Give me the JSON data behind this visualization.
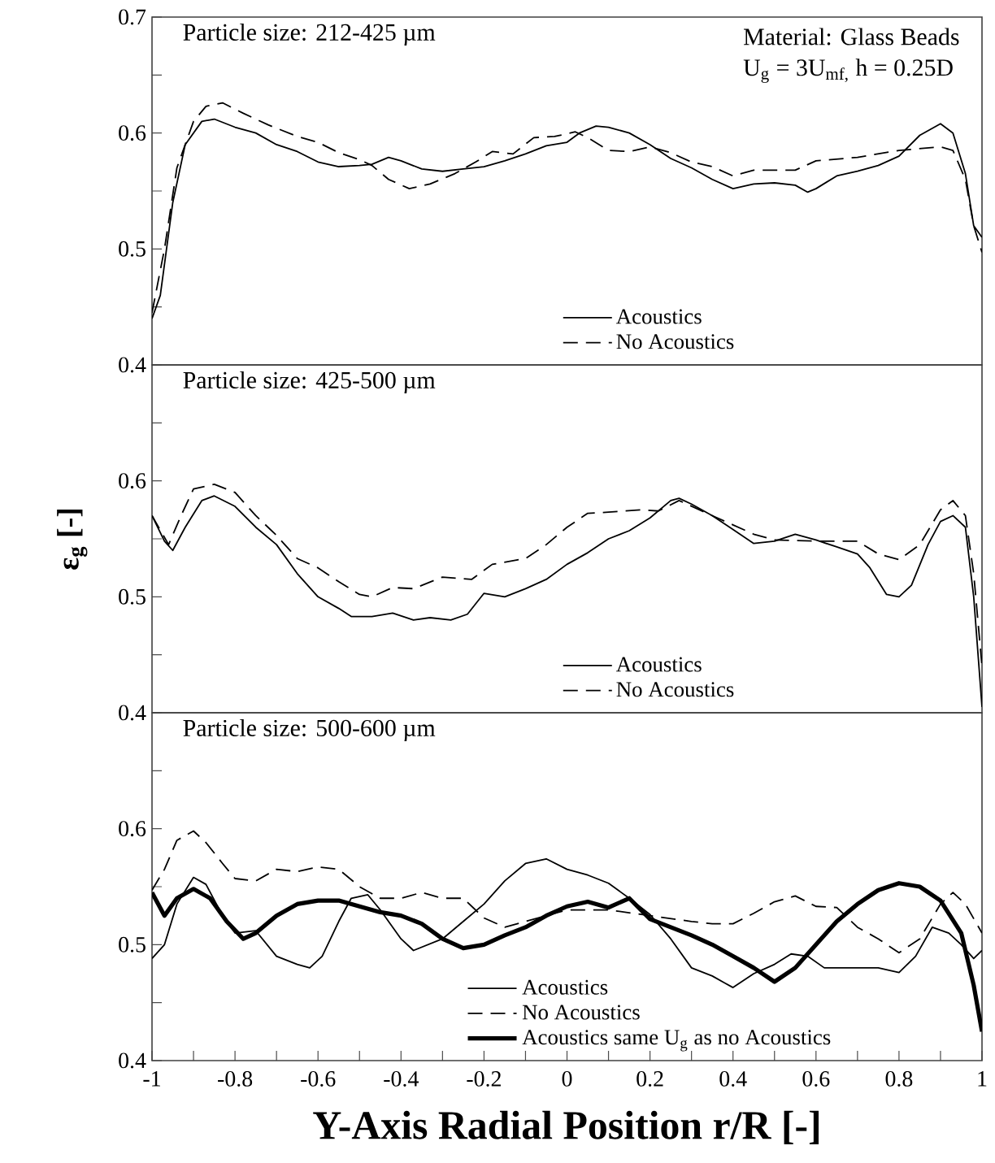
{
  "chart_data": [
    {
      "type": "line",
      "title": "Particle size: 212-425 µm",
      "xlim": [
        -1,
        1
      ],
      "ylim": [
        0.4,
        0.7
      ],
      "yticks": [
        0.4,
        {
          "value": 0.45,
          "label": null
        },
        0.5,
        {
          "value": 0.55,
          "label": null
        },
        0.6,
        {
          "value": 0.65,
          "label": null
        },
        0.7
      ],
      "tick_labels": "y",
      "legend": "bottom",
      "annotations": [
        "Material: Glass Beads",
        "U$_{g}$ = 3U$_{mf,}$ h = 0.25D"
      ],
      "series": [
        {
          "name": "Acoustics",
          "color": "#000000",
          "line_style": "solid",
          "x": [
            -1,
            -0.98,
            -0.95,
            -0.92,
            -0.88,
            -0.85,
            -0.8,
            -0.75,
            -0.7,
            -0.65,
            -0.6,
            -0.55,
            -0.5,
            -0.47,
            -0.43,
            -0.4,
            -0.35,
            -0.3,
            -0.25,
            -0.2,
            -0.15,
            -0.1,
            -0.05,
            0,
            0.03,
            0.07,
            0.1,
            0.15,
            0.2,
            0.25,
            0.3,
            0.35,
            0.4,
            0.45,
            0.5,
            0.55,
            0.58,
            0.6,
            0.65,
            0.7,
            0.75,
            0.8,
            0.85,
            0.9,
            0.93,
            0.96,
            0.98,
            1
          ],
          "values": [
            0.44,
            0.46,
            0.54,
            0.59,
            0.61,
            0.612,
            0.605,
            0.6,
            0.59,
            0.584,
            0.575,
            0.571,
            0.572,
            0.573,
            0.579,
            0.576,
            0.569,
            0.567,
            0.569,
            0.571,
            0.576,
            0.582,
            0.589,
            0.592,
            0.6,
            0.606,
            0.605,
            0.6,
            0.59,
            0.578,
            0.57,
            0.56,
            0.552,
            0.556,
            0.557,
            0.555,
            0.549,
            0.552,
            0.563,
            0.567,
            0.572,
            0.58,
            0.598,
            0.608,
            0.6,
            0.565,
            0.52,
            0.51
          ]
        },
        {
          "name": "No Acoustics",
          "color": "#000000",
          "line_style": "dashed",
          "x": [
            -1,
            -0.97,
            -0.94,
            -0.9,
            -0.87,
            -0.83,
            -0.78,
            -0.72,
            -0.65,
            -0.6,
            -0.55,
            -0.5,
            -0.47,
            -0.43,
            -0.38,
            -0.33,
            -0.27,
            -0.22,
            -0.18,
            -0.13,
            -0.08,
            -0.03,
            0.02,
            0.05,
            0.1,
            0.15,
            0.2,
            0.25,
            0.3,
            0.35,
            0.4,
            0.45,
            0.55,
            0.6,
            0.7,
            0.8,
            0.9,
            0.93,
            0.96,
            0.98,
            1
          ],
          "values": [
            0.445,
            0.5,
            0.57,
            0.61,
            0.623,
            0.626,
            0.617,
            0.607,
            0.597,
            0.592,
            0.583,
            0.577,
            0.572,
            0.56,
            0.552,
            0.556,
            0.565,
            0.575,
            0.584,
            0.582,
            0.596,
            0.597,
            0.601,
            0.596,
            0.585,
            0.584,
            0.588,
            0.583,
            0.575,
            0.571,
            0.563,
            0.568,
            0.568,
            0.576,
            0.579,
            0.585,
            0.588,
            0.585,
            0.56,
            0.52,
            0.497
          ]
        }
      ]
    },
    {
      "type": "line",
      "title": "Particle size: 425-500 µm",
      "ylabel": "ε$_{g}$ [-]",
      "xlim": [
        -1,
        1
      ],
      "ylim": [
        0.4,
        0.7
      ],
      "yticks": [
        0.4,
        {
          "value": 0.45,
          "label": null
        },
        0.5,
        {
          "value": 0.55,
          "label": null
        },
        0.6,
        {
          "value": 0.65,
          "label": null
        }
      ],
      "tick_labels": "y",
      "legend": "bottom",
      "series": [
        {
          "name": "Acoustics",
          "color": "#000000",
          "line_style": "solid",
          "x": [
            -1,
            -0.97,
            -0.95,
            -0.92,
            -0.88,
            -0.85,
            -0.8,
            -0.75,
            -0.7,
            -0.65,
            -0.6,
            -0.55,
            -0.52,
            -0.47,
            -0.42,
            -0.37,
            -0.33,
            -0.28,
            -0.24,
            -0.2,
            -0.15,
            -0.1,
            -0.05,
            0,
            0.05,
            0.1,
            0.15,
            0.2,
            0.25,
            0.27,
            0.3,
            0.35,
            0.4,
            0.45,
            0.5,
            0.55,
            0.6,
            0.65,
            0.7,
            0.73,
            0.77,
            0.8,
            0.83,
            0.87,
            0.9,
            0.93,
            0.96,
            0.98,
            1
          ],
          "values": [
            0.57,
            0.548,
            0.54,
            0.56,
            0.583,
            0.587,
            0.578,
            0.56,
            0.545,
            0.52,
            0.5,
            0.49,
            0.483,
            0.483,
            0.486,
            0.48,
            0.482,
            0.48,
            0.485,
            0.503,
            0.5,
            0.507,
            0.515,
            0.528,
            0.538,
            0.55,
            0.557,
            0.568,
            0.583,
            0.585,
            0.58,
            0.57,
            0.558,
            0.546,
            0.548,
            0.554,
            0.549,
            0.543,
            0.537,
            0.525,
            0.502,
            0.5,
            0.51,
            0.545,
            0.565,
            0.57,
            0.56,
            0.5,
            0.405
          ]
        },
        {
          "name": "No Acoustics",
          "color": "#000000",
          "line_style": "dashed",
          "x": [
            -1,
            -0.96,
            -0.93,
            -0.9,
            -0.85,
            -0.8,
            -0.75,
            -0.7,
            -0.65,
            -0.6,
            -0.55,
            -0.5,
            -0.47,
            -0.42,
            -0.37,
            -0.3,
            -0.23,
            -0.18,
            -0.1,
            -0.05,
            0,
            0.05,
            0.1,
            0.18,
            0.22,
            0.27,
            0.35,
            0.4,
            0.45,
            0.5,
            0.6,
            0.7,
            0.75,
            0.8,
            0.85,
            0.9,
            0.93,
            0.96,
            0.98,
            1
          ],
          "values": [
            0.57,
            0.545,
            0.57,
            0.593,
            0.597,
            0.59,
            0.57,
            0.553,
            0.533,
            0.525,
            0.513,
            0.502,
            0.5,
            0.508,
            0.507,
            0.517,
            0.515,
            0.528,
            0.533,
            0.545,
            0.56,
            0.572,
            0.573,
            0.575,
            0.574,
            0.583,
            0.57,
            0.562,
            0.554,
            0.549,
            0.548,
            0.548,
            0.537,
            0.532,
            0.545,
            0.575,
            0.583,
            0.57,
            0.52,
            0.44
          ]
        }
      ]
    },
    {
      "type": "line",
      "title": "Particle size: 500-600 µm",
      "xlabel": "Y-Axis Radial Position r/R [-]",
      "xlim": [
        -1,
        1
      ],
      "ylim": [
        0.4,
        0.7
      ],
      "xticks": [
        -1,
        {
          "value": -0.9,
          "label": null
        },
        -0.8,
        {
          "value": -0.7,
          "label": null
        },
        -0.6,
        {
          "value": -0.5,
          "label": null
        },
        -0.4,
        {
          "value": -0.3,
          "label": null
        },
        -0.2,
        {
          "value": -0.1,
          "label": null
        },
        0,
        {
          "value": 0.1,
          "label": null
        },
        0.2,
        {
          "value": 0.3,
          "label": null
        },
        0.4,
        {
          "value": 0.5,
          "label": null
        },
        0.6,
        {
          "value": 0.7,
          "label": null
        },
        0.8,
        {
          "value": 0.9,
          "label": null
        },
        1
      ],
      "yticks": [
        0.4,
        {
          "value": 0.45,
          "label": null
        },
        0.5,
        {
          "value": 0.55,
          "label": null
        },
        0.6,
        {
          "value": 0.65,
          "label": null
        }
      ],
      "legend": "bottom",
      "series": [
        {
          "name": "Acoustics",
          "color": "#000000",
          "line_style": "solid",
          "x": [
            -1,
            -0.97,
            -0.94,
            -0.9,
            -0.87,
            -0.83,
            -0.8,
            -0.75,
            -0.7,
            -0.65,
            -0.62,
            -0.59,
            -0.55,
            -0.52,
            -0.48,
            -0.45,
            -0.4,
            -0.37,
            -0.3,
            -0.25,
            -0.2,
            -0.15,
            -0.1,
            -0.05,
            0,
            0.05,
            0.1,
            0.15,
            0.2,
            0.25,
            0.3,
            0.35,
            0.38,
            0.4,
            0.45,
            0.5,
            0.54,
            0.58,
            0.62,
            0.7,
            0.75,
            0.8,
            0.84,
            0.88,
            0.92,
            0.95,
            0.98,
            1
          ],
          "values": [
            0.488,
            0.5,
            0.535,
            0.558,
            0.552,
            0.525,
            0.51,
            0.512,
            0.49,
            0.483,
            0.48,
            0.49,
            0.52,
            0.54,
            0.543,
            0.53,
            0.505,
            0.495,
            0.505,
            0.52,
            0.535,
            0.555,
            0.57,
            0.574,
            0.565,
            0.56,
            0.553,
            0.54,
            0.526,
            0.505,
            0.48,
            0.473,
            0.467,
            0.463,
            0.475,
            0.483,
            0.492,
            0.49,
            0.48,
            0.48,
            0.48,
            0.476,
            0.49,
            0.515,
            0.51,
            0.5,
            0.488,
            0.495
          ]
        },
        {
          "name": "No Acoustics",
          "color": "#000000",
          "line_style": "dashed",
          "x": [
            -1,
            -0.97,
            -0.94,
            -0.9,
            -0.87,
            -0.83,
            -0.8,
            -0.75,
            -0.7,
            -0.65,
            -0.6,
            -0.55,
            -0.5,
            -0.45,
            -0.4,
            -0.35,
            -0.3,
            -0.25,
            -0.2,
            -0.15,
            -0.1,
            -0.05,
            0,
            0.1,
            0.2,
            0.3,
            0.35,
            0.4,
            0.45,
            0.5,
            0.55,
            0.6,
            0.65,
            0.7,
            0.75,
            0.8,
            0.85,
            0.9,
            0.93,
            0.96,
            1
          ],
          "values": [
            0.547,
            0.565,
            0.59,
            0.598,
            0.588,
            0.57,
            0.557,
            0.555,
            0.565,
            0.563,
            0.567,
            0.565,
            0.55,
            0.54,
            0.54,
            0.545,
            0.54,
            0.54,
            0.523,
            0.515,
            0.52,
            0.525,
            0.53,
            0.53,
            0.525,
            0.52,
            0.518,
            0.518,
            0.527,
            0.537,
            0.542,
            0.533,
            0.532,
            0.515,
            0.505,
            0.493,
            0.505,
            0.535,
            0.545,
            0.535,
            0.51
          ]
        },
        {
          "name": "Acoustics same U$_{g}$ as no Acoustics",
          "color": "#000000",
          "line_style": "solid",
          "x": [
            -1,
            -0.97,
            -0.94,
            -0.9,
            -0.86,
            -0.82,
            -0.78,
            -0.75,
            -0.7,
            -0.65,
            -0.6,
            -0.55,
            -0.5,
            -0.45,
            -0.4,
            -0.35,
            -0.3,
            -0.25,
            -0.2,
            -0.15,
            -0.1,
            -0.05,
            0,
            0.05,
            0.1,
            0.15,
            0.2,
            0.25,
            0.3,
            0.35,
            0.4,
            0.45,
            0.5,
            0.55,
            0.6,
            0.65,
            0.7,
            0.75,
            0.8,
            0.85,
            0.9,
            0.95,
            0.98,
            1
          ],
          "values": [
            0.545,
            0.525,
            0.54,
            0.548,
            0.54,
            0.52,
            0.505,
            0.51,
            0.525,
            0.535,
            0.538,
            0.538,
            0.533,
            0.528,
            0.525,
            0.518,
            0.505,
            0.497,
            0.5,
            0.508,
            0.515,
            0.525,
            0.533,
            0.537,
            0.532,
            0.54,
            0.522,
            0.515,
            0.508,
            0.5,
            0.49,
            0.48,
            0.468,
            0.48,
            0.5,
            0.52,
            0.535,
            0.547,
            0.553,
            0.55,
            0.538,
            0.51,
            0.465,
            0.425
          ]
        }
      ]
    }
  ]
}
